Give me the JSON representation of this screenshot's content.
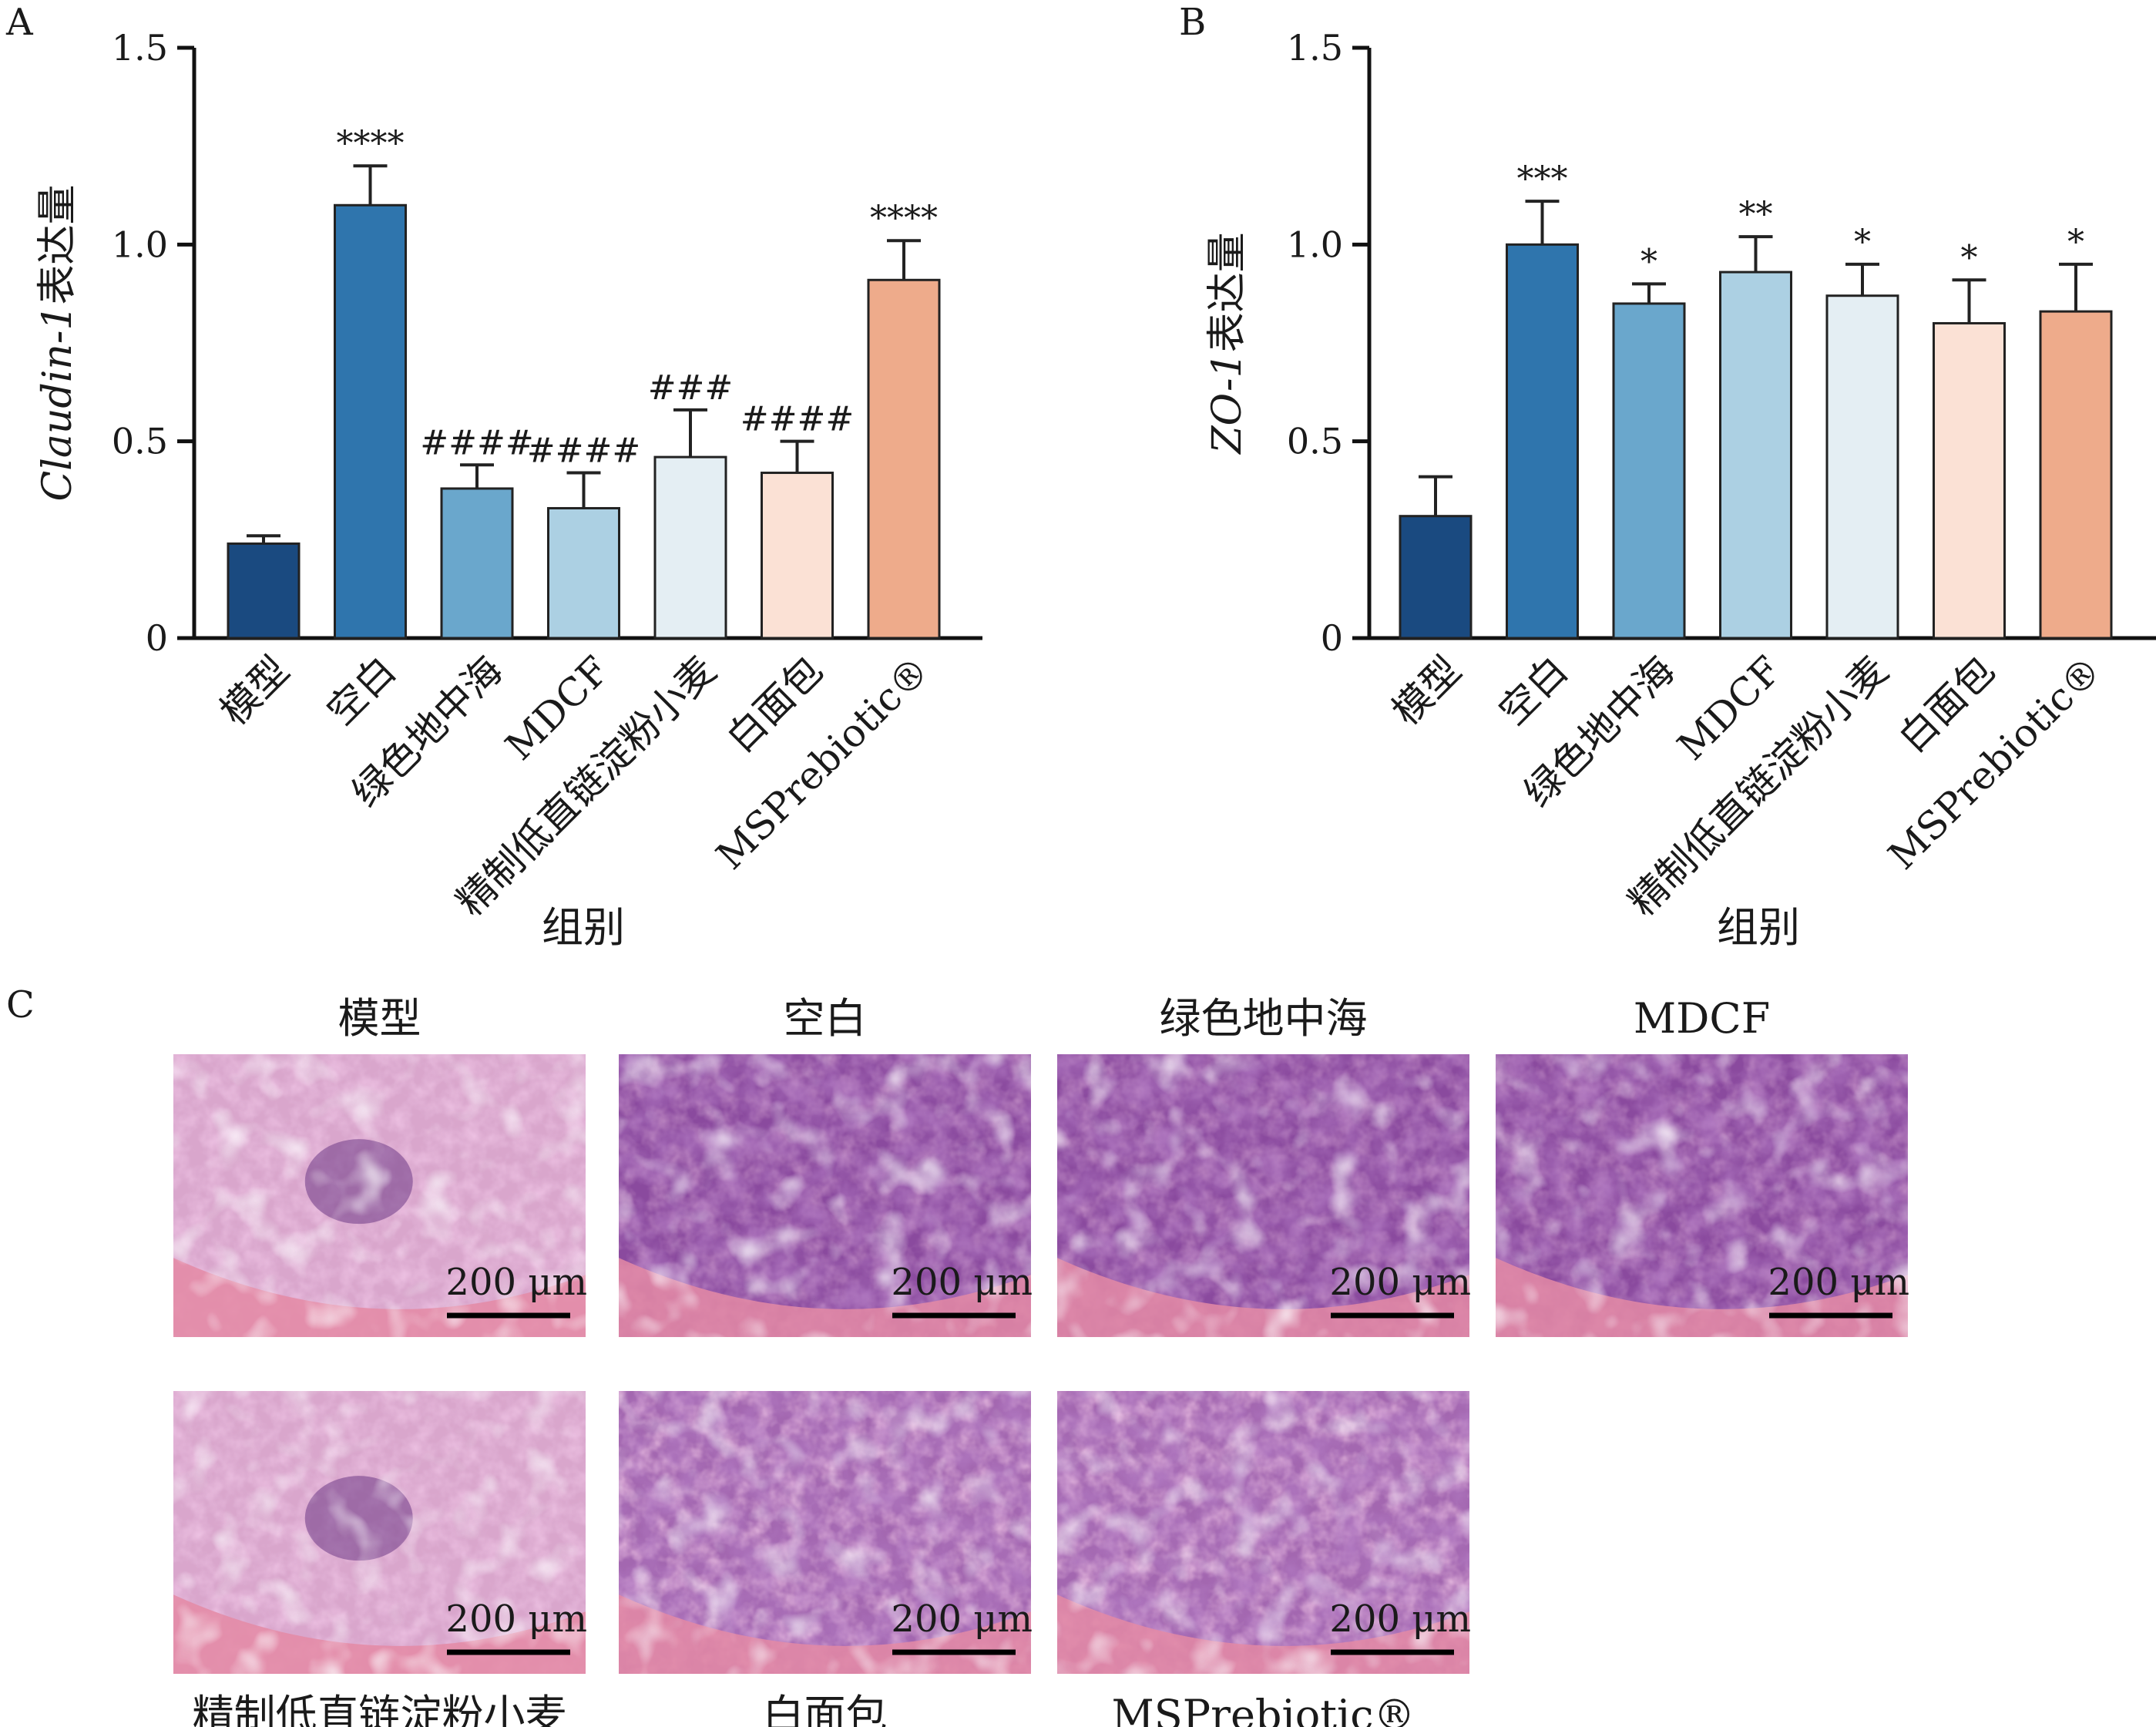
{
  "colors": [
    "#1a4a80",
    "#2f75ad",
    "#6aa7cc",
    "#acd0e3",
    "#e4eef3",
    "#fbe1d5",
    "#eeab8b"
  ],
  "chart_data": [
    {
      "type": "bar",
      "panel": "A",
      "categories": [
        "模型",
        "空白",
        "绿色地中海",
        "MDCF",
        "精制低直链淀粉小麦",
        "白面包",
        "MSPrebiotic®"
      ],
      "values": [
        0.24,
        1.1,
        0.38,
        0.33,
        0.46,
        0.42,
        0.91
      ],
      "errors": [
        0.02,
        0.1,
        0.06,
        0.09,
        0.12,
        0.08,
        0.1
      ],
      "significance": [
        "",
        "****",
        "####",
        "####",
        "###",
        "####",
        "****"
      ],
      "ylabel_italic": "Claudin-1",
      "ylabel_rest": "表达量",
      "xlabel": "组别",
      "ylim": [
        0,
        1.5
      ],
      "yticks": [
        0,
        0.5,
        1.0,
        1.5
      ],
      "ytick_labels": [
        "0",
        "0.5",
        "1.0",
        "1.5"
      ]
    },
    {
      "type": "bar",
      "panel": "B",
      "categories": [
        "模型",
        "空白",
        "绿色地中海",
        "MDCF",
        "精制低直链淀粉小麦",
        "白面包",
        "MSPrebiotic®"
      ],
      "values": [
        0.31,
        1.0,
        0.85,
        0.93,
        0.87,
        0.8,
        0.83
      ],
      "errors": [
        0.1,
        0.11,
        0.05,
        0.09,
        0.08,
        0.11,
        0.12
      ],
      "significance": [
        "",
        "***",
        "*",
        "**",
        "*",
        "*",
        "*"
      ],
      "ylabel_italic": "ZO-1",
      "ylabel_rest": "表达量",
      "xlabel": "组别",
      "ylim": [
        0,
        1.5
      ],
      "yticks": [
        0,
        0.5,
        1.0,
        1.5
      ],
      "ytick_labels": [
        "0",
        "0.5",
        "1.0",
        "1.5"
      ]
    }
  ],
  "panel_c": {
    "label": "C",
    "images": [
      {
        "caption": "模型",
        "scale": "200 μm",
        "variant": "inflamed"
      },
      {
        "caption": "空白",
        "scale": "200 μm",
        "variant": "normal"
      },
      {
        "caption": "绿色地中海",
        "scale": "200 μm",
        "variant": "normal"
      },
      {
        "caption": "MDCF",
        "scale": "200 μm",
        "variant": "normal"
      },
      {
        "caption": "精制低直链淀粉小麦",
        "scale": "200 μm",
        "variant": "inflamed"
      },
      {
        "caption": "白面包",
        "scale": "200 μm",
        "variant": "mixed"
      },
      {
        "caption": "MSPrebiotic®",
        "scale": "200 μm",
        "variant": "mixed"
      }
    ]
  }
}
